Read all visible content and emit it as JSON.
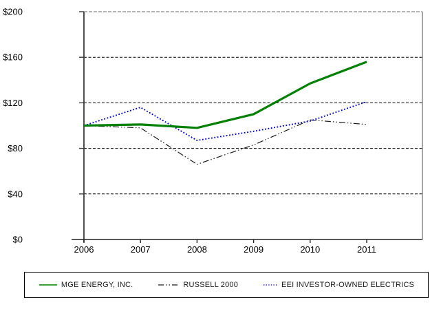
{
  "chart_data": {
    "type": "line",
    "title": "",
    "categories": [
      "2006",
      "2007",
      "2008",
      "2009",
      "2010",
      "2011"
    ],
    "y_tick_labels": [
      "$0",
      "$40",
      "$80",
      "$120",
      "$160",
      "$200"
    ],
    "ylim": [
      0,
      200
    ],
    "y_step": 40,
    "grid": "horizontal-dashed-black, top-and-right-border-gray",
    "legend_position": "boxed-below-plot",
    "series": [
      {
        "name": "MGE ENERGY, INC.",
        "values": [
          100,
          101,
          98,
          110,
          137,
          156
        ],
        "color": "#008000",
        "style": "solid",
        "width": 3.2
      },
      {
        "name": "RUSSELL 2000",
        "values": [
          100,
          98,
          66,
          83,
          105,
          101
        ],
        "color": "#1a1a1a",
        "style": "dash-dot-dot",
        "width": 1.2
      },
      {
        "name": "EEI INVESTOR-OWNED ELECTRICS",
        "values": [
          100,
          116,
          87,
          95,
          104,
          121
        ],
        "color": "#0000cc",
        "style": "dotted",
        "width": 1.9
      }
    ]
  }
}
